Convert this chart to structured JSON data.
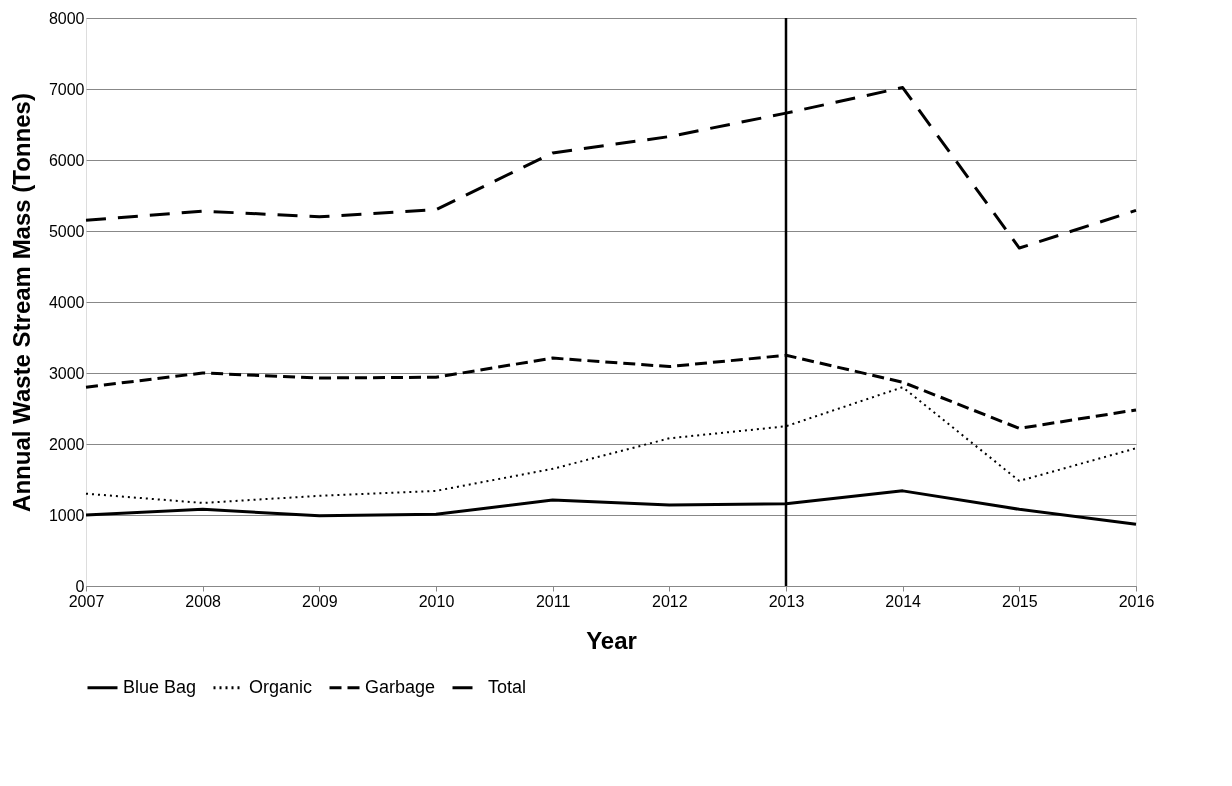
{
  "chart_data": {
    "type": "line",
    "xlabel": "Year",
    "ylabel": "Annual Waste Stream Mass (Tonnes)",
    "x": [
      2007,
      2008,
      2009,
      2010,
      2011,
      2012,
      2013,
      2014,
      2015,
      2016
    ],
    "series": [
      {
        "name": "Blue Bag",
        "color": "#000000",
        "line_style": "solid",
        "values": [
          1000,
          1080,
          990,
          1010,
          1210,
          1140,
          1160,
          1340,
          1080,
          870
        ]
      },
      {
        "name": "Organic",
        "color": "#000000",
        "line_style": "dotted",
        "values": [
          1300,
          1170,
          1270,
          1340,
          1650,
          2080,
          2250,
          2800,
          1480,
          1940
        ]
      },
      {
        "name": "Garbage",
        "color": "#000000",
        "line_style": "dashed",
        "values": [
          2800,
          3000,
          2930,
          2940,
          3210,
          3090,
          3250,
          2870,
          2220,
          2480
        ]
      },
      {
        "name": "Total",
        "color": "#000000",
        "line_style": "dashed",
        "values": [
          5150,
          5280,
          5200,
          5300,
          6100,
          6330,
          6660,
          7020,
          4760,
          5290
        ]
      }
    ],
    "xlim": [
      2007,
      2016
    ],
    "xticks": [
      2007,
      2008,
      2009,
      2010,
      2011,
      2012,
      2013,
      2014,
      2015,
      2016
    ],
    "ylim": [
      0,
      8000
    ],
    "yticks": [
      0,
      1000,
      2000,
      3000,
      4000,
      5000,
      6000,
      7000,
      8000
    ],
    "ref_lines": [
      {
        "axis": "x",
        "value": 2013,
        "color": "#000000"
      }
    ],
    "grid": "y",
    "legend": "bottom",
    "marker": "none"
  }
}
